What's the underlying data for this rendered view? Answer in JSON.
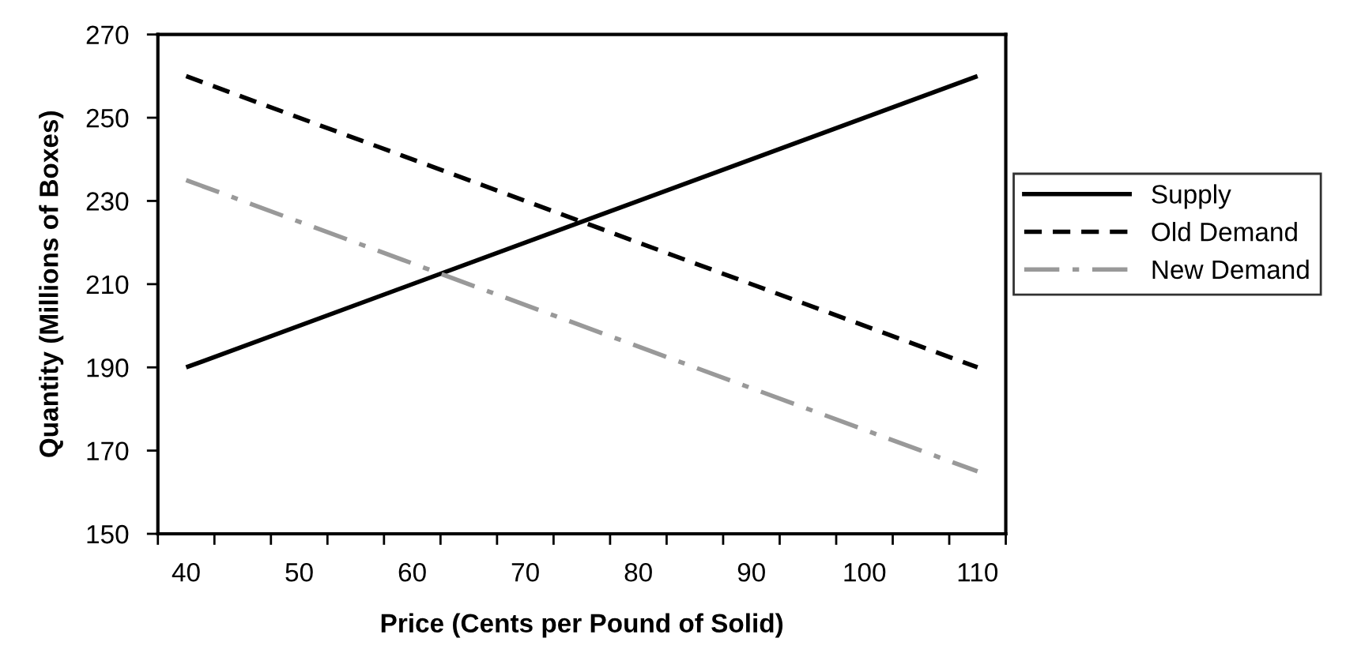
{
  "chart_data": {
    "type": "line",
    "xlabel": "Price (Cents per Pound of Solid)",
    "ylabel": "Quantity (Millions of Boxes)",
    "x": [
      40,
      110
    ],
    "series": [
      {
        "name": "Supply",
        "color": "#000000",
        "line_style": "solid",
        "values": [
          190,
          260
        ]
      },
      {
        "name": "Old Demand",
        "color": "#000000",
        "line_style": "dashed",
        "values": [
          260,
          190
        ]
      },
      {
        "name": "New Demand",
        "color": "#999999",
        "line_style": "dashdot",
        "values": [
          235,
          165
        ]
      }
    ],
    "xlim": [
      37.5,
      112.5
    ],
    "xticks": [
      {
        "value": 37.5,
        "label": null
      },
      40,
      {
        "value": 42.5,
        "label": null
      },
      {
        "value": 47.5,
        "label": null
      },
      50,
      {
        "value": 52.5,
        "label": null
      },
      {
        "value": 57.5,
        "label": null
      },
      60,
      {
        "value": 62.5,
        "label": null
      },
      {
        "value": 67.5,
        "label": null
      },
      70,
      {
        "value": 72.5,
        "label": null
      },
      {
        "value": 77.5,
        "label": null
      },
      80,
      {
        "value": 82.5,
        "label": null
      },
      {
        "value": 87.5,
        "label": null
      },
      90,
      {
        "value": 92.5,
        "label": null
      },
      {
        "value": 97.5,
        "label": null
      },
      100,
      {
        "value": 102.5,
        "label": null
      },
      {
        "value": 107.5,
        "label": null
      },
      110,
      {
        "value": 112.5,
        "label": null
      }
    ],
    "ylim": [
      150,
      270
    ],
    "yticks": [
      150,
      170,
      190,
      210,
      230,
      250,
      270
    ],
    "grid": false,
    "legend": "right",
    "marker": "none"
  }
}
